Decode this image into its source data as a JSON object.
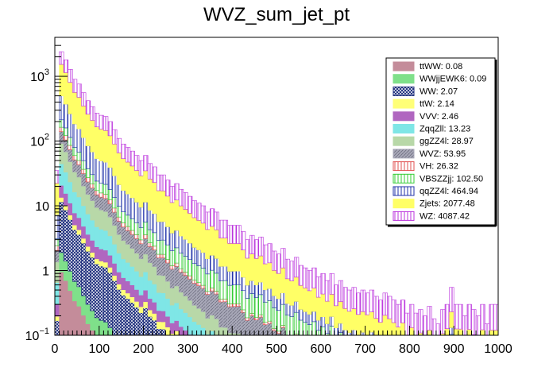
{
  "chart_data": {
    "type": "bar",
    "title": "WVZ_sum_jet_pt",
    "xlabel": "",
    "ylabel": "",
    "stacked": true,
    "log_y": true,
    "xlim": [
      0,
      1000
    ],
    "ylim": [
      0.1,
      4000
    ],
    "bin_width": 10,
    "x_ticks": [
      "0",
      "100",
      "200",
      "300",
      "400",
      "500",
      "600",
      "700",
      "800",
      "900",
      "1000"
    ],
    "y_ticks": [
      {
        "value": 0.1,
        "base": "10",
        "exp": "−1"
      },
      {
        "value": 1,
        "text": "1"
      },
      {
        "value": 10,
        "text": "10"
      },
      {
        "value": 100,
        "base": "10",
        "exp": "2"
      },
      {
        "value": 1000,
        "base": "10",
        "exp": "3"
      }
    ],
    "grid": false,
    "legend_position": "top-right",
    "totals": [
      35,
      2400,
      1800,
      1280,
      900,
      760,
      560,
      420,
      340,
      270,
      250,
      240,
      200,
      150,
      110,
      90,
      80,
      70,
      60,
      50,
      60,
      45,
      40,
      30,
      30,
      25,
      20,
      22,
      18,
      16,
      14,
      12,
      11,
      10,
      8,
      9,
      8,
      6,
      6,
      5,
      5,
      5,
      4,
      3,
      3.5,
      3,
      3.3,
      2.5,
      2.6,
      2,
      1.8,
      2.2,
      1.5,
      1.4,
      1.6,
      1.2,
      1.1,
      1.0,
      1.1,
      0.8,
      0.9,
      0.7,
      0.9,
      0.6,
      0.7,
      0.55,
      0.5,
      0.55,
      0.45,
      0.5,
      0.45,
      0.5,
      0.4,
      0.35,
      0.45,
      0.4,
      0.35,
      0.3,
      0.35,
      0.22,
      0.3,
      0.22,
      0.25,
      0.2,
      0.28,
      0.18,
      0.15,
      0.25,
      0.3,
      0.55,
      0.3,
      0.3,
      0.2,
      0.3,
      0.25,
      0.2,
      0.3,
      0.15,
      0.3,
      0.3
    ],
    "series": [
      {
        "name": "ttWW: 0.08",
        "fill": "#c48c9a",
        "pattern": "solid",
        "share": [
          0.0004,
          0.0003,
          0.0003,
          0.0002,
          0.0002,
          0.0002,
          0.0001
        ]
      },
      {
        "name": "WWjjEWK6: 0.09",
        "fill": "#7fe08a",
        "pattern": "solid",
        "share": [
          0.0004,
          0.0003,
          0.0003,
          0.0002,
          0.0002,
          0.0002,
          0.0001
        ]
      },
      {
        "name": "WW: 2.07",
        "fill": "#1a2a7a",
        "pattern": "cross",
        "share": [
          0.004,
          0.004,
          0.003,
          0.003,
          0.002,
          0.002,
          0.002
        ]
      },
      {
        "name": "ttW: 2.14",
        "fill": "#ffff77",
        "pattern": "solid",
        "share": [
          0.0008,
          0.001,
          0.0015,
          0.002,
          0.003,
          0.004,
          0.006
        ]
      },
      {
        "name": "VVV: 2.46",
        "fill": "#b066c0",
        "pattern": "solid",
        "share": [
          0.003,
          0.003,
          0.002,
          0.002,
          0.002,
          0.002,
          0.002
        ]
      },
      {
        "name": "ZqqZll: 13.23",
        "fill": "#7fe6e6",
        "pattern": "solid",
        "share": [
          0.01,
          0.008,
          0.006,
          0.004,
          0.003,
          0.002,
          0.002
        ]
      },
      {
        "name": "ggZZ4l: 28.97",
        "fill": "#b8d8a8",
        "pattern": "solid",
        "share": [
          0.02,
          0.015,
          0.01,
          0.008,
          0.006,
          0.005,
          0.004
        ]
      },
      {
        "name": "WVZ: 53.95",
        "fill": "#a8a8b8",
        "pattern": "hatch",
        "share": [
          0.02,
          0.02,
          0.03,
          0.04,
          0.05,
          0.06,
          0.06
        ]
      },
      {
        "name": "VH: 26.32",
        "fill": "#e05050",
        "pattern": "vlines",
        "share": [
          0.01,
          0.008,
          0.006,
          0.005,
          0.004,
          0.003,
          0.003
        ]
      },
      {
        "name": "VBSZZjj: 102.50",
        "fill": "#33cc33",
        "pattern": "vlines",
        "share": [
          0.02,
          0.03,
          0.05,
          0.07,
          0.09,
          0.1,
          0.12
        ]
      },
      {
        "name": "qqZZ4l: 464.94",
        "fill": "#2233aa",
        "pattern": "vlines",
        "share": [
          0.12,
          0.1,
          0.08,
          0.07,
          0.06,
          0.05,
          0.05
        ]
      },
      {
        "name": "Zjets: 2077.48",
        "fill": "#ffff66",
        "pattern": "solid",
        "share": [
          0.43,
          0.4,
          0.35,
          0.3,
          0.25,
          0.2,
          0.15
        ]
      },
      {
        "name": "WZ: 4087.42",
        "fill": "#bb33dd",
        "pattern": "vlines",
        "share": [
          0.36,
          0.41,
          0.46,
          0.5,
          0.53,
          0.56,
          0.6
        ]
      }
    ]
  }
}
